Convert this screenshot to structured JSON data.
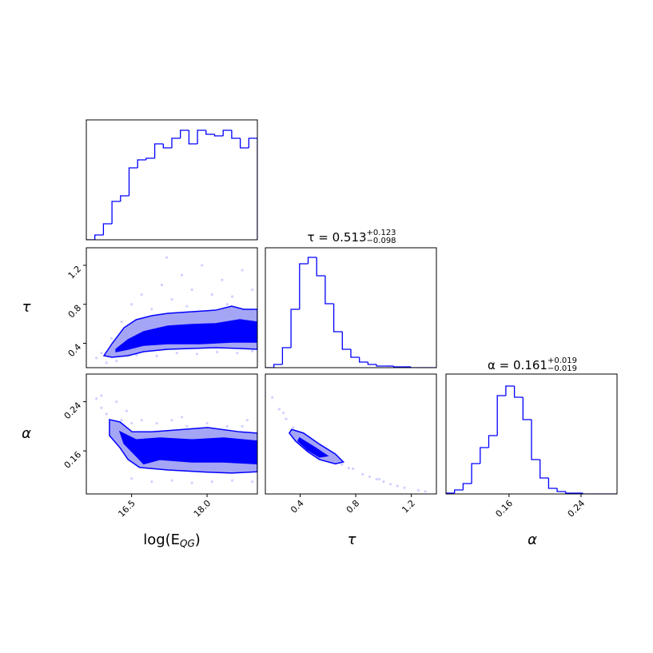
{
  "chart_data": [
    {
      "type": "histogram",
      "color": "#0000ff",
      "xlim": [
        15.6,
        19.0
      ],
      "ylim": [
        0,
        150
      ],
      "bins": [
        15.6,
        15.77,
        15.94,
        16.11,
        16.28,
        16.45,
        16.62,
        16.79,
        16.96,
        17.13,
        17.3,
        17.47,
        17.64,
        17.81,
        17.98,
        18.15,
        18.32,
        18.49,
        18.66,
        18.83,
        19.0
      ],
      "values": [
        0,
        6,
        20,
        48,
        55,
        90,
        100,
        102,
        120,
        115,
        127,
        137,
        120,
        137,
        132,
        130,
        137,
        127,
        115,
        127
      ]
    },
    {
      "type": "histogram",
      "color": "#0000ff",
      "xlim": [
        0.15,
        1.38
      ],
      "ylim": [
        0,
        150
      ],
      "title": "τ = 0.513",
      "title_sup": "+0.123",
      "title_sub": "−0.098",
      "bins": [
        0.15,
        0.2115,
        0.273,
        0.3345,
        0.396,
        0.4575,
        0.519,
        0.5805,
        0.642,
        0.7035,
        0.765,
        0.8265,
        0.888,
        0.9495,
        1.011,
        1.0725,
        1.134,
        1.1955,
        1.257,
        1.3185,
        1.38
      ],
      "values": [
        0,
        4,
        25,
        73,
        130,
        138,
        115,
        80,
        45,
        23,
        13,
        7,
        4,
        2,
        2,
        1,
        1,
        0,
        0,
        0
      ]
    },
    {
      "type": "histogram",
      "color": "#0000ff",
      "xlim": [
        0.09,
        0.28
      ],
      "ylim": [
        0,
        150
      ],
      "title": "α = 0.161",
      "title_sup": "+0.019",
      "title_sub": "−0.019",
      "xlabel": "α",
      "xticks": [
        0.16,
        0.24
      ],
      "bins": [
        0.09,
        0.0995,
        0.109,
        0.1185,
        0.128,
        0.1375,
        0.147,
        0.1565,
        0.166,
        0.1755,
        0.185,
        0.1945,
        0.204,
        0.2135,
        0.223,
        0.2325,
        0.242,
        0.2515,
        0.261,
        0.2705,
        0.28
      ],
      "values": [
        1,
        5,
        13,
        38,
        58,
        73,
        123,
        135,
        121,
        93,
        43,
        20,
        7,
        3,
        1,
        1,
        0,
        0,
        0,
        0
      ]
    },
    {
      "type": "scatter",
      "color": "#0000ff",
      "contour_colors": [
        "#a5a5f5",
        "#0000ff"
      ],
      "xlim": [
        15.6,
        19.0
      ],
      "ylim": [
        0.15,
        1.38
      ],
      "ylabel": "τ",
      "yticks": [
        0.4,
        0.8,
        1.2
      ],
      "x": [
        15.8,
        15.9,
        16.1,
        16.3,
        16.5,
        16.7,
        16.9,
        17.1,
        17.3,
        17.5,
        17.7,
        17.9,
        18.1,
        18.3,
        18.5,
        18.7,
        18.9,
        16.2,
        16.6,
        17.0,
        17.4,
        17.8,
        18.2,
        18.6,
        18.9,
        17.2,
        16.0,
        18.4,
        17.6,
        16.8
      ],
      "y": [
        0.25,
        0.3,
        0.45,
        0.62,
        0.8,
        0.9,
        0.75,
        1.0,
        0.85,
        1.1,
        0.95,
        1.2,
        0.9,
        1.05,
        0.88,
        1.15,
        0.95,
        0.22,
        0.28,
        0.27,
        0.3,
        0.29,
        0.31,
        0.3,
        0.32,
        1.28,
        0.2,
        0.8,
        0.78,
        0.6
      ],
      "contours": [
        [
          [
            15.95,
            0.273
          ],
          [
            16.11,
            0.396
          ],
          [
            16.35,
            0.56
          ],
          [
            16.59,
            0.642
          ],
          [
            16.9,
            0.683
          ],
          [
            17.22,
            0.708
          ],
          [
            17.7,
            0.724
          ],
          [
            18.17,
            0.74
          ],
          [
            18.49,
            0.781
          ],
          [
            18.73,
            0.749
          ],
          [
            19.0,
            0.749
          ],
          [
            19.0,
            0.339
          ],
          [
            18.65,
            0.347
          ],
          [
            18.17,
            0.355
          ],
          [
            17.7,
            0.347
          ],
          [
            17.22,
            0.339
          ],
          [
            16.74,
            0.314
          ],
          [
            16.43,
            0.273
          ],
          [
            16.11,
            0.257
          ]
        ],
        [
          [
            16.19,
            0.339
          ],
          [
            16.43,
            0.437
          ],
          [
            16.74,
            0.519
          ],
          [
            17.22,
            0.576
          ],
          [
            17.7,
            0.593
          ],
          [
            18.17,
            0.601
          ],
          [
            18.65,
            0.642
          ],
          [
            19.0,
            0.617
          ],
          [
            19.0,
            0.412
          ],
          [
            18.49,
            0.412
          ],
          [
            17.86,
            0.396
          ],
          [
            17.22,
            0.396
          ],
          [
            16.74,
            0.38
          ],
          [
            16.43,
            0.339
          ],
          [
            16.19,
            0.314
          ]
        ]
      ]
    },
    {
      "type": "scatter",
      "color": "#0000ff",
      "contour_colors": [
        "#a5a5f5",
        "#0000ff"
      ],
      "xlim": [
        15.6,
        19.0
      ],
      "ylim": [
        0.09,
        0.285
      ],
      "ylabel": "α",
      "xlabel": "log(E",
      "xlabel_sub": "QG",
      "xlabel_tail": ")",
      "xticks": [
        16.5,
        {
          "value": 18,
          "label": "18.0"
        }
      ],
      "yticks": [
        0.16,
        0.24
      ],
      "x": [
        15.8,
        15.9,
        16.0,
        16.2,
        16.3,
        16.5,
        16.7,
        17.0,
        17.3,
        17.6,
        18.0,
        18.4,
        18.8,
        16.1,
        16.5,
        16.9,
        17.3,
        17.7,
        18.1,
        18.5,
        18.9,
        15.9,
        16.4,
        17.5,
        18.7
      ],
      "y": [
        0.245,
        0.23,
        0.22,
        0.24,
        0.21,
        0.205,
        0.21,
        0.205,
        0.21,
        0.2,
        0.205,
        0.2,
        0.21,
        0.2,
        0.115,
        0.11,
        0.112,
        0.108,
        0.11,
        0.112,
        0.11,
        0.25,
        0.225,
        0.215,
        0.2
      ],
      "contours": [
        [
          [
            16.06,
            0.211
          ],
          [
            16.27,
            0.207
          ],
          [
            16.51,
            0.191
          ],
          [
            16.9,
            0.191
          ],
          [
            17.38,
            0.194
          ],
          [
            18.01,
            0.198
          ],
          [
            18.65,
            0.191
          ],
          [
            19.0,
            0.189
          ],
          [
            19.0,
            0.126
          ],
          [
            18.49,
            0.124
          ],
          [
            17.86,
            0.126
          ],
          [
            17.22,
            0.129
          ],
          [
            16.66,
            0.133
          ],
          [
            16.43,
            0.146
          ],
          [
            16.27,
            0.165
          ],
          [
            16.06,
            0.185
          ]
        ],
        [
          [
            16.27,
            0.191
          ],
          [
            16.59,
            0.178
          ],
          [
            17.06,
            0.181
          ],
          [
            17.7,
            0.178
          ],
          [
            18.33,
            0.181
          ],
          [
            19.0,
            0.176
          ],
          [
            19.0,
            0.139
          ],
          [
            18.33,
            0.142
          ],
          [
            17.7,
            0.142
          ],
          [
            17.06,
            0.146
          ],
          [
            16.74,
            0.139
          ],
          [
            16.59,
            0.152
          ],
          [
            16.35,
            0.172
          ]
        ]
      ]
    },
    {
      "type": "scatter",
      "color": "#0000ff",
      "contour_colors": [
        "#a5a5f5",
        "#0000ff"
      ],
      "xlim": [
        0.15,
        1.38
      ],
      "ylim": [
        0.09,
        0.285
      ],
      "xlabel": "τ",
      "xticks": [
        0.4,
        0.8,
        1.2
      ],
      "x": [
        0.2,
        0.25,
        0.3,
        0.35,
        0.45,
        0.5,
        0.55,
        0.6,
        0.65,
        0.7,
        0.75,
        0.85,
        0.9,
        0.95,
        1.0,
        1.05,
        1.1,
        1.15,
        1.25,
        0.28,
        0.62,
        0.78,
        0.97,
        1.3
      ],
      "y": [
        0.247,
        0.228,
        0.212,
        0.198,
        0.175,
        0.166,
        0.158,
        0.151,
        0.144,
        0.138,
        0.132,
        0.122,
        0.118,
        0.114,
        0.11,
        0.106,
        0.103,
        0.1,
        0.096,
        0.222,
        0.146,
        0.131,
        0.114,
        0.094
      ],
      "contours": [
        [
          [
            0.339,
            0.195
          ],
          [
            0.425,
            0.189
          ],
          [
            0.539,
            0.171
          ],
          [
            0.653,
            0.155
          ],
          [
            0.711,
            0.142
          ],
          [
            0.653,
            0.139
          ],
          [
            0.539,
            0.146
          ],
          [
            0.453,
            0.159
          ],
          [
            0.367,
            0.176
          ],
          [
            0.322,
            0.189
          ]
        ],
        [
          [
            0.396,
            0.181
          ],
          [
            0.51,
            0.165
          ],
          [
            0.596,
            0.152
          ],
          [
            0.539,
            0.15
          ],
          [
            0.453,
            0.162
          ],
          [
            0.385,
            0.176
          ]
        ]
      ]
    }
  ]
}
